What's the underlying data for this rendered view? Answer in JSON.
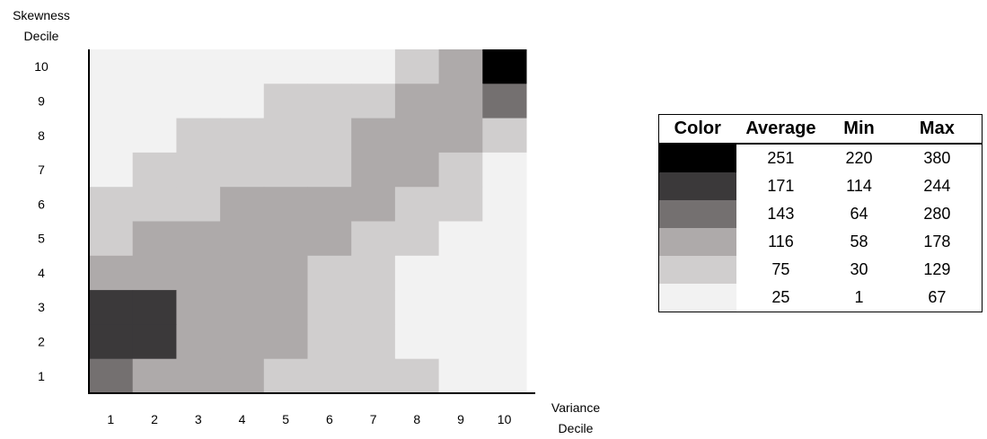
{
  "chart_data": {
    "type": "heatmap",
    "title": "",
    "xlabel": [
      "Variance",
      "Decile"
    ],
    "ylabel": [
      "Skewness",
      "Decile"
    ],
    "x_categories": [
      "1",
      "2",
      "3",
      "4",
      "5",
      "6",
      "7",
      "8",
      "9",
      "10"
    ],
    "y_categories": [
      "1",
      "2",
      "3",
      "4",
      "5",
      "6",
      "7",
      "8",
      "9",
      "10"
    ],
    "levels": [
      {
        "color": "#000000",
        "average": "251",
        "min": "220",
        "max": "380"
      },
      {
        "color": "#3b393a",
        "average": "171",
        "min": "114",
        "max": "244"
      },
      {
        "color": "#747070",
        "average": "143",
        "min": "64",
        "max": "280"
      },
      {
        "color": "#aeaaaa",
        "average": "116",
        "min": "58",
        "max": "178"
      },
      {
        "color": "#d0cece",
        "average": "75",
        "min": "30",
        "max": "129"
      },
      {
        "color": "#f2f2f2",
        "average": "25",
        "min": "1",
        "max": "67"
      }
    ],
    "cell_levels_by_skewness_decile": [
      {
        "skewness": 10,
        "levels": [
          5,
          5,
          5,
          5,
          5,
          5,
          5,
          4,
          3,
          0
        ]
      },
      {
        "skewness": 9,
        "levels": [
          5,
          5,
          5,
          5,
          4,
          4,
          4,
          3,
          3,
          2
        ]
      },
      {
        "skewness": 8,
        "levels": [
          5,
          5,
          4,
          4,
          4,
          4,
          3,
          3,
          3,
          4
        ]
      },
      {
        "skewness": 7,
        "levels": [
          5,
          4,
          4,
          4,
          4,
          4,
          3,
          3,
          4,
          5
        ]
      },
      {
        "skewness": 6,
        "levels": [
          4,
          4,
          4,
          3,
          3,
          3,
          3,
          4,
          4,
          5
        ]
      },
      {
        "skewness": 5,
        "levels": [
          4,
          3,
          3,
          3,
          3,
          3,
          4,
          4,
          5,
          5
        ]
      },
      {
        "skewness": 4,
        "levels": [
          3,
          3,
          3,
          3,
          3,
          4,
          4,
          5,
          5,
          5
        ]
      },
      {
        "skewness": 3,
        "levels": [
          1,
          1,
          3,
          3,
          3,
          4,
          4,
          5,
          5,
          5
        ]
      },
      {
        "skewness": 2,
        "levels": [
          1,
          1,
          3,
          3,
          3,
          4,
          4,
          5,
          5,
          5
        ]
      },
      {
        "skewness": 1,
        "levels": [
          2,
          3,
          3,
          3,
          4,
          4,
          4,
          4,
          5,
          5
        ]
      }
    ],
    "grid": false,
    "legend": "right",
    "legend_table": {
      "headers": [
        "Color",
        "Average",
        "Min",
        "Max"
      ]
    }
  }
}
